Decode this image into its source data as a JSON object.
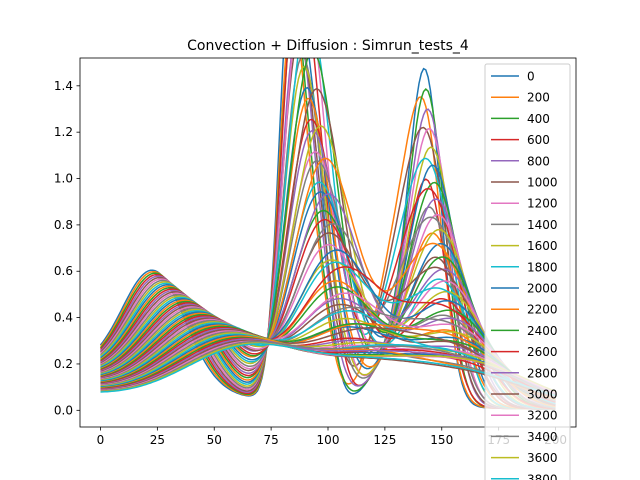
{
  "chart_data": {
    "type": "line",
    "title": "Convection + Diffusion : Simrun_tests_4",
    "xlabel": "",
    "ylabel": "",
    "xlim": [
      -9,
      209
    ],
    "ylim": [
      -0.072,
      1.52
    ],
    "x_ticks": [
      "0",
      "25",
      "50",
      "75",
      "100",
      "125",
      "150",
      "175",
      "200"
    ],
    "x_tick_values": [
      0,
      25,
      50,
      75,
      100,
      125,
      150,
      175,
      200
    ],
    "y_ticks": [
      "0.0",
      "0.2",
      "0.4",
      "0.6",
      "0.8",
      "1.0",
      "1.2",
      "1.4"
    ],
    "y_tick_values": [
      0,
      0.2,
      0.4,
      0.6,
      0.8,
      1.0,
      1.2,
      1.4
    ],
    "grid": false,
    "legend_placement": "upper right",
    "x_domain": [
      0,
      200
    ],
    "series_families": [
      {
        "kind": "left_hump",
        "note": "solid near x=0 at 0.16, peak ~0.55 at x~23 drifting right and spreading"
      },
      {
        "kind": "center_spike",
        "note": "sharp peak 1.44 at x~83, decaying and spreading"
      },
      {
        "kind": "second_spike",
        "note": "peak 1.12 at x~93"
      },
      {
        "kind": "right_hump",
        "note": "peak 1.14 at x~143, decaying"
      },
      {
        "kind": "mid_hump",
        "note": "peak 0.67 at x~132"
      }
    ],
    "series": [
      {
        "name": "0",
        "color": "#1f77b4"
      },
      {
        "name": "200",
        "color": "#ff7f0e"
      },
      {
        "name": "400",
        "color": "#2ca02c"
      },
      {
        "name": "600",
        "color": "#d62728"
      },
      {
        "name": "800",
        "color": "#9467bd"
      },
      {
        "name": "1000",
        "color": "#8c564b"
      },
      {
        "name": "1200",
        "color": "#e377c2"
      },
      {
        "name": "1400",
        "color": "#7f7f7f"
      },
      {
        "name": "1600",
        "color": "#bcbd22"
      },
      {
        "name": "1800",
        "color": "#17becf"
      },
      {
        "name": "2000",
        "color": "#1f77b4"
      },
      {
        "name": "2200",
        "color": "#ff7f0e"
      },
      {
        "name": "2400",
        "color": "#2ca02c"
      },
      {
        "name": "2600",
        "color": "#d62728"
      },
      {
        "name": "2800",
        "color": "#9467bd"
      },
      {
        "name": "3000",
        "color": "#8c564b"
      },
      {
        "name": "3200",
        "color": "#e377c2"
      },
      {
        "name": "3400",
        "color": "#7f7f7f"
      },
      {
        "name": "3600",
        "color": "#bcbd22"
      },
      {
        "name": "3800",
        "color": "#17becf"
      }
    ],
    "palette": [
      "#1f77b4",
      "#ff7f0e",
      "#2ca02c",
      "#d62728",
      "#9467bd",
      "#8c564b",
      "#e377c2",
      "#7f7f7f",
      "#bcbd22",
      "#17becf"
    ]
  }
}
